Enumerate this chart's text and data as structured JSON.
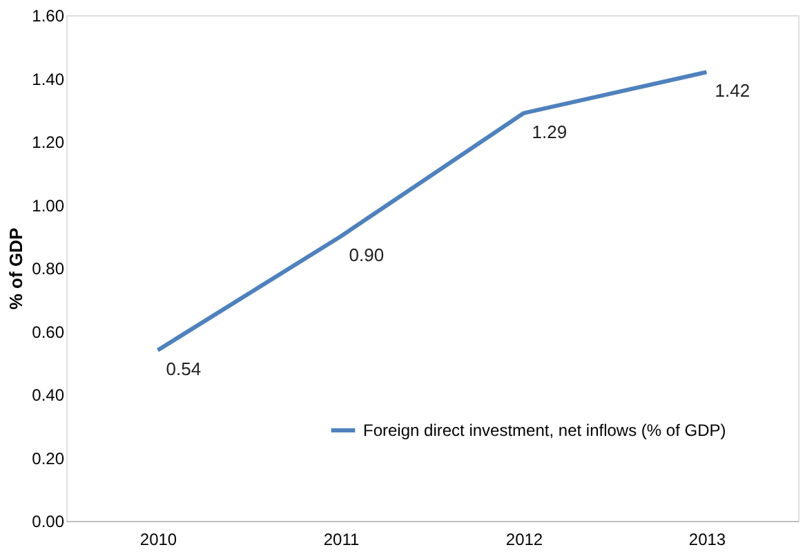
{
  "chart_data": {
    "type": "line",
    "ylabel": "% of GDP",
    "categories": [
      "2010",
      "2011",
      "2012",
      "2013"
    ],
    "series": [
      {
        "name": "Foreign direct investment, net inflows (% of GDP)",
        "color": "#4f81bd",
        "values": [
          0.54,
          0.9,
          1.29,
          1.42
        ],
        "value_labels": [
          "0.54",
          "0.90",
          "1.29",
          "1.42"
        ]
      }
    ],
    "ylim": [
      0,
      1.6
    ],
    "yticks": [
      {
        "value": 0,
        "label": "0.00"
      },
      {
        "value": 0.2,
        "label": "0.20"
      },
      {
        "value": 0.4,
        "label": "0.40"
      },
      {
        "value": 0.6,
        "label": "0.60"
      },
      {
        "value": 0.8,
        "label": "0.80"
      },
      {
        "value": 1.0,
        "label": "1.00"
      },
      {
        "value": 1.2,
        "label": "1.20"
      },
      {
        "value": 1.4,
        "label": "1.40"
      },
      {
        "value": 1.6,
        "label": "1.60"
      }
    ],
    "grid": false,
    "legend": "bottom right",
    "marker": "none",
    "line_style": "solid"
  }
}
